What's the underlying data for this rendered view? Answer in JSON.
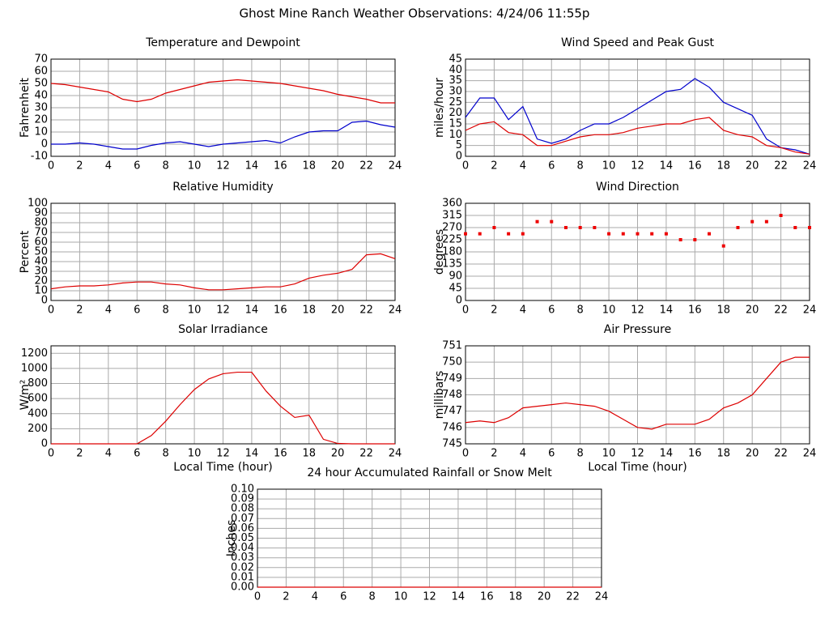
{
  "title": "Ghost Mine Ranch Weather Observations: 4/24/06 11:55p",
  "chart_data": [
    {
      "type": "line",
      "title": "Temperature and Dewpoint",
      "y_label": "Fahrenheit",
      "x": [
        0,
        1,
        2,
        3,
        4,
        5,
        6,
        7,
        8,
        9,
        10,
        11,
        12,
        13,
        14,
        15,
        16,
        17,
        18,
        19,
        20,
        21,
        22,
        23,
        24
      ],
      "series": [
        {
          "color": "#dd0000",
          "values": [
            50,
            49,
            47,
            45,
            43,
            37,
            35,
            37,
            42,
            45,
            48,
            51,
            52,
            53,
            52,
            51,
            50,
            48,
            46,
            44,
            41,
            39,
            37,
            34,
            34
          ]
        },
        {
          "color": "#0000cc",
          "values": [
            0,
            0,
            1,
            0,
            -2,
            -4,
            -4,
            -1,
            1,
            2,
            0,
            -2,
            0,
            1,
            2,
            3,
            1,
            6,
            10,
            11,
            11,
            18,
            19,
            16,
            14
          ]
        }
      ],
      "xlim": [
        0,
        24
      ],
      "xticks": [
        0,
        2,
        4,
        6,
        8,
        10,
        12,
        14,
        16,
        18,
        20,
        22,
        24
      ],
      "ylim": [
        -10,
        70
      ],
      "yticks": [
        -10,
        0,
        10,
        20,
        30,
        40,
        50,
        60,
        70
      ],
      "grid": true
    },
    {
      "type": "line",
      "title": "Wind Speed and Peak Gust",
      "y_label": "miles/hour",
      "x": [
        0,
        1,
        2,
        3,
        4,
        5,
        6,
        7,
        8,
        9,
        10,
        11,
        12,
        13,
        14,
        15,
        16,
        17,
        18,
        19,
        20,
        21,
        22,
        23,
        24
      ],
      "series": [
        {
          "color": "#0000cc",
          "values": [
            18,
            27,
            27,
            17,
            23,
            8,
            6,
            8,
            12,
            15,
            15,
            18,
            22,
            26,
            30,
            31,
            36,
            32,
            25,
            22,
            19,
            8,
            4,
            3,
            1
          ]
        },
        {
          "color": "#dd0000",
          "values": [
            12,
            15,
            16,
            11,
            10,
            5,
            5,
            7,
            9,
            10,
            10,
            11,
            13,
            14,
            15,
            15,
            17,
            18,
            12,
            10,
            9,
            5,
            4,
            2,
            1
          ]
        }
      ],
      "xlim": [
        0,
        24
      ],
      "xticks": [
        0,
        2,
        4,
        6,
        8,
        10,
        12,
        14,
        16,
        18,
        20,
        22,
        24
      ],
      "ylim": [
        0,
        45
      ],
      "yticks": [
        0,
        5,
        10,
        15,
        20,
        25,
        30,
        35,
        40,
        45
      ],
      "grid": true
    },
    {
      "type": "line",
      "title": "Relative Humidity",
      "y_label": "Percent",
      "x": [
        0,
        1,
        2,
        3,
        4,
        5,
        6,
        7,
        8,
        9,
        10,
        11,
        12,
        13,
        14,
        15,
        16,
        17,
        18,
        19,
        20,
        21,
        22,
        23,
        24
      ],
      "series": [
        {
          "color": "#dd0000",
          "values": [
            12,
            14,
            15,
            15,
            16,
            18,
            19,
            19,
            17,
            16,
            13,
            11,
            11,
            12,
            13,
            14,
            14,
            17,
            23,
            26,
            28,
            32,
            47,
            48,
            43
          ]
        }
      ],
      "xlim": [
        0,
        24
      ],
      "xticks": [
        0,
        2,
        4,
        6,
        8,
        10,
        12,
        14,
        16,
        18,
        20,
        22,
        24
      ],
      "ylim": [
        0,
        100
      ],
      "yticks": [
        0,
        10,
        20,
        30,
        40,
        50,
        60,
        70,
        80,
        90,
        100
      ],
      "grid": true
    },
    {
      "type": "scatter",
      "title": "Wind Direction",
      "y_label": "degrees",
      "x": [
        0,
        1,
        2,
        3,
        4,
        5,
        6,
        7,
        8,
        9,
        10,
        11,
        12,
        13,
        14,
        15,
        16,
        17,
        18,
        19,
        20,
        21,
        22,
        23,
        24
      ],
      "series": [
        {
          "color": "#ee0000",
          "values": [
            247,
            247,
            270,
            247,
            247,
            292,
            292,
            270,
            270,
            270,
            247,
            247,
            247,
            247,
            247,
            225,
            225,
            247,
            202,
            270,
            292,
            292,
            315,
            270,
            270
          ]
        }
      ],
      "xlim": [
        0,
        24
      ],
      "xticks": [
        0,
        2,
        4,
        6,
        8,
        10,
        12,
        14,
        16,
        18,
        20,
        22,
        24
      ],
      "ylim": [
        0,
        360
      ],
      "yticks": [
        0,
        45,
        90,
        135,
        180,
        225,
        270,
        315,
        360
      ],
      "grid": true
    },
    {
      "type": "line",
      "title": "Solar Irradiance",
      "y_label": "W/m²",
      "x_label": "Local Time (hour)",
      "x": [
        0,
        1,
        2,
        3,
        4,
        5,
        6,
        7,
        8,
        9,
        10,
        11,
        12,
        13,
        14,
        15,
        16,
        17,
        18,
        19,
        20,
        21,
        22,
        23,
        24
      ],
      "series": [
        {
          "color": "#dd0000",
          "values": [
            0,
            0,
            0,
            0,
            0,
            0,
            0,
            110,
            300,
            520,
            720,
            860,
            930,
            950,
            950,
            700,
            500,
            350,
            380,
            60,
            5,
            0,
            0,
            0,
            0
          ]
        }
      ],
      "xlim": [
        0,
        24
      ],
      "xticks": [
        0,
        2,
        4,
        6,
        8,
        10,
        12,
        14,
        16,
        18,
        20,
        22,
        24
      ],
      "ylim": [
        0,
        1300
      ],
      "yticks": [
        0,
        200,
        400,
        600,
        800,
        1000,
        1200
      ],
      "grid": true
    },
    {
      "type": "line",
      "title": "Air Pressure",
      "y_label": "millibars",
      "x_label": "Local Time (hour)",
      "x": [
        0,
        1,
        2,
        3,
        4,
        5,
        6,
        7,
        8,
        9,
        10,
        11,
        12,
        13,
        14,
        15,
        16,
        17,
        18,
        19,
        20,
        21,
        22,
        23,
        24
      ],
      "series": [
        {
          "color": "#dd0000",
          "values": [
            746.3,
            746.4,
            746.3,
            746.6,
            747.2,
            747.3,
            747.4,
            747.5,
            747.4,
            747.3,
            747.0,
            746.5,
            746.0,
            745.9,
            746.2,
            746.2,
            746.2,
            746.5,
            747.2,
            747.5,
            748.0,
            749.0,
            750.0,
            750.3,
            750.3
          ]
        }
      ],
      "xlim": [
        0,
        24
      ],
      "xticks": [
        0,
        2,
        4,
        6,
        8,
        10,
        12,
        14,
        16,
        18,
        20,
        22,
        24
      ],
      "ylim": [
        745,
        751
      ],
      "yticks": [
        745,
        746,
        747,
        748,
        749,
        750,
        751
      ],
      "grid": true
    },
    {
      "type": "line",
      "title": "24 hour Accumulated Rainfall or Snow Melt",
      "y_label": "Inches",
      "x": [
        0,
        24
      ],
      "series": [
        {
          "color": "#dd0000",
          "values": [
            0,
            0
          ]
        }
      ],
      "xlim": [
        0,
        24
      ],
      "xticks": [
        0,
        2,
        4,
        6,
        8,
        10,
        12,
        14,
        16,
        18,
        20,
        22,
        24
      ],
      "ylim": [
        0,
        0.1
      ],
      "yticks": [
        {
          "value": 0,
          "label": "0.00"
        },
        0.01,
        0.02,
        0.03,
        0.04,
        0.05,
        0.06,
        0.07,
        0.08,
        0.09,
        {
          "value": 0.1,
          "label": "0.10"
        }
      ],
      "grid": true
    }
  ]
}
